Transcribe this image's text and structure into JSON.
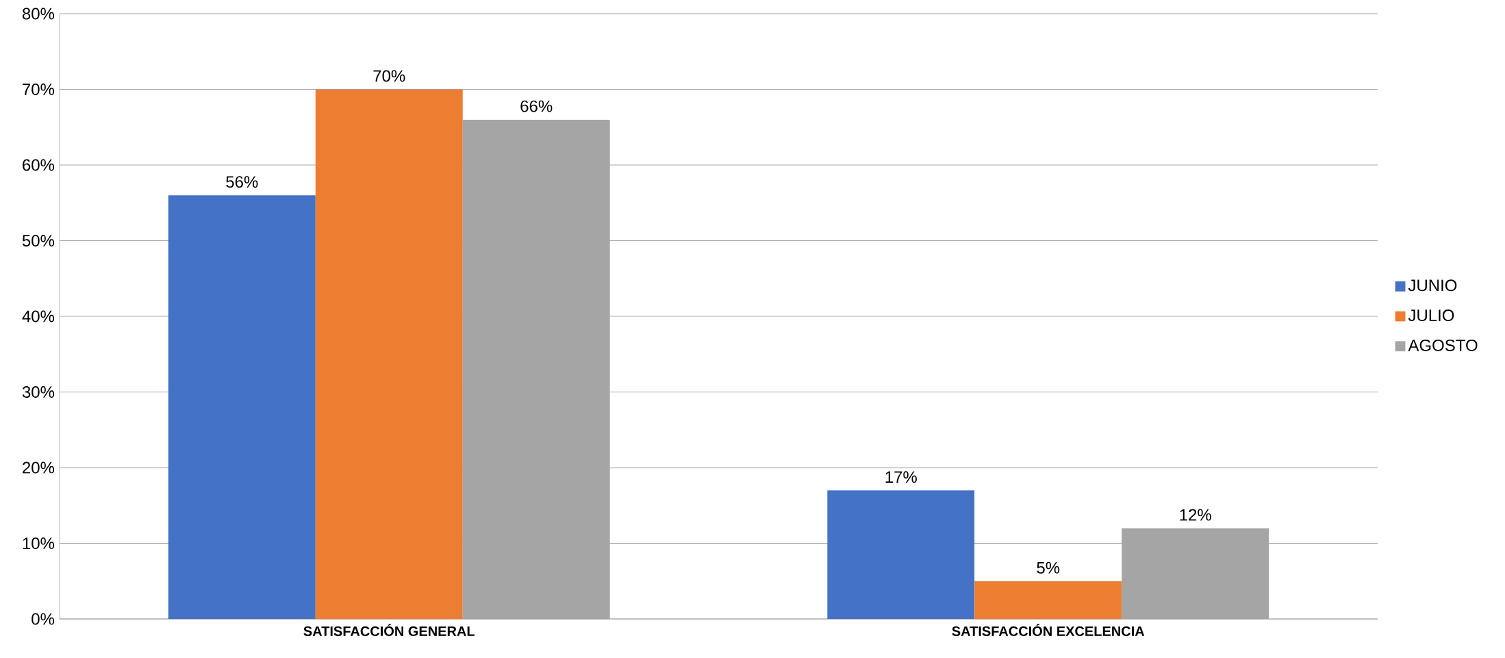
{
  "chart_data": {
    "type": "bar",
    "categories": [
      "SATISFACCIÓN GENERAL",
      "SATISFACCIÓN EXCELENCIA"
    ],
    "series": [
      {
        "name": "JUNIO",
        "color": "#4472c4",
        "values": [
          56,
          17
        ],
        "value_labels": [
          "56%",
          "17%"
        ]
      },
      {
        "name": "JULIO",
        "color": "#ed7d31",
        "values": [
          70,
          5
        ],
        "value_labels": [
          "70%",
          "5%"
        ]
      },
      {
        "name": "AGOSTO",
        "color": "#a5a5a5",
        "values": [
          66,
          12
        ],
        "value_labels": [
          "66%",
          "12%"
        ]
      }
    ],
    "ylim": [
      0,
      80
    ],
    "yticks": [
      {
        "value": 0,
        "label": "0%"
      },
      {
        "value": 10,
        "label": "10%"
      },
      {
        "value": 20,
        "label": "20%"
      },
      {
        "value": 30,
        "label": "30%"
      },
      {
        "value": 40,
        "label": "40%"
      },
      {
        "value": 50,
        "label": "50%"
      },
      {
        "value": 60,
        "label": "60%"
      },
      {
        "value": 70,
        "label": "70%"
      },
      {
        "value": 80,
        "label": "80%"
      }
    ],
    "grid": "y",
    "legend": "right"
  }
}
